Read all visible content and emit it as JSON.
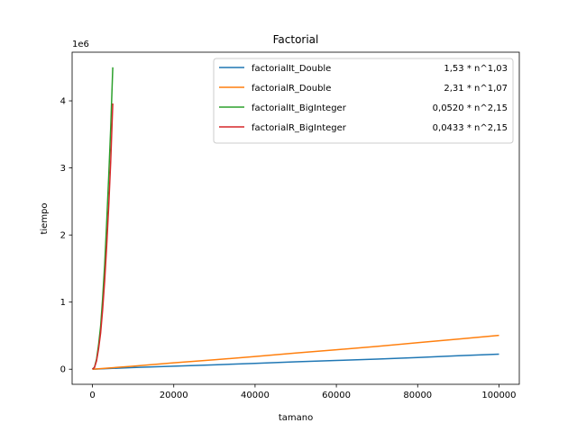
{
  "chart_data": {
    "type": "line",
    "title": "Factorial",
    "xlabel": "tamano",
    "ylabel": "tiempo",
    "y_offset_label": "1e6",
    "xlim": [
      -5000,
      105000
    ],
    "ylim": [
      -225000,
      4725000
    ],
    "x_ticks": [
      0,
      20000,
      40000,
      60000,
      80000,
      100000
    ],
    "x_tick_labels": [
      "0",
      "20000",
      "40000",
      "60000",
      "80000",
      "100000"
    ],
    "y_ticks": [
      0,
      1000000,
      2000000,
      3000000,
      4000000
    ],
    "y_tick_labels": [
      "0",
      "1",
      "2",
      "3",
      "4"
    ],
    "grid": false,
    "legend_position": "top-right",
    "series": [
      {
        "name": "factorialIt_Double",
        "formula": "1,53 * n^1,03",
        "color": "#1f77b4",
        "x": [
          0,
          10000,
          20000,
          30000,
          40000,
          50000,
          60000,
          70000,
          80000,
          90000,
          100000
        ],
        "y": [
          0,
          25000,
          45000,
          65000,
          87000,
          110000,
          130000,
          150000,
          175000,
          200000,
          225000
        ]
      },
      {
        "name": "factorialR_Double",
        "formula": "2,31 * n^1,07",
        "color": "#ff7f0e",
        "x": [
          0,
          10000,
          20000,
          30000,
          40000,
          50000,
          60000,
          70000,
          80000,
          90000,
          100000
        ],
        "y": [
          0,
          45000,
          95000,
          140000,
          190000,
          240000,
          290000,
          340000,
          395000,
          450000,
          505000
        ]
      },
      {
        "name": "factorialIt_BigInteger",
        "formula": "0,0520 * n^2,15",
        "color": "#2ca02c",
        "x": [
          0,
          500,
          1000,
          1500,
          2000,
          2500,
          3000,
          3500,
          4000,
          4500,
          5000
        ],
        "y": [
          0,
          30000,
          150000,
          360000,
          640000,
          1050000,
          1560000,
          2180000,
          2880000,
          3600000,
          4500000
        ]
      },
      {
        "name": "factorialR_BigInteger",
        "formula": "0,0433 * n^2,15",
        "color": "#d62728",
        "x": [
          0,
          500,
          1000,
          1500,
          2000,
          2500,
          3000,
          3500,
          4000,
          4500,
          5000
        ],
        "y": [
          0,
          25000,
          125000,
          300000,
          540000,
          880000,
          1320000,
          1830000,
          2430000,
          3100000,
          3960000
        ]
      }
    ]
  }
}
